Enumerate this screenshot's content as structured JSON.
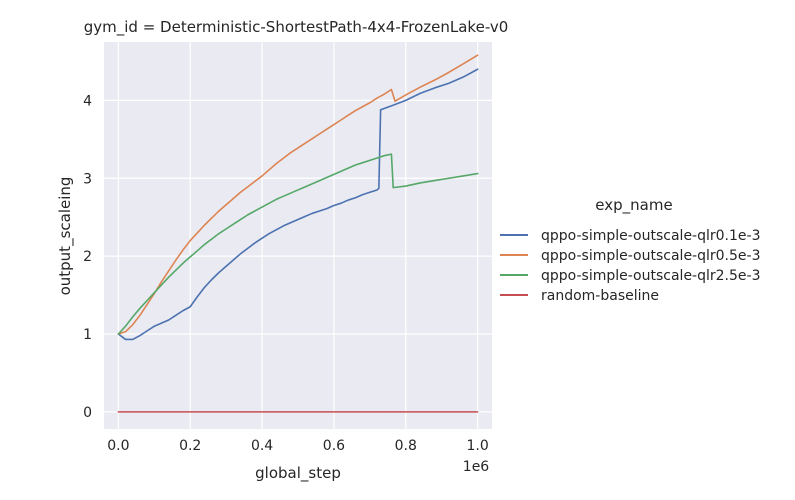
{
  "chart_data": {
    "type": "line",
    "title": "gym_id = Deterministic-ShortestPath-4x4-FrozenLake-v0",
    "xlabel": "global_step",
    "ylabel": "output_scaleing",
    "x_offset_label": "1e6",
    "xlim": [
      -0.04,
      1.04
    ],
    "ylim": [
      -0.22,
      4.75
    ],
    "x_ticks": [
      0.0,
      0.2,
      0.4,
      0.6,
      0.8,
      1.0
    ],
    "x_tick_labels": [
      "0.0",
      "0.2",
      "0.4",
      "0.6",
      "0.8",
      "1.0"
    ],
    "y_ticks": [
      0,
      1,
      2,
      3,
      4
    ],
    "y_tick_labels": [
      "0",
      "1",
      "2",
      "3",
      "4"
    ],
    "grid": true,
    "legend": {
      "title": "exp_name",
      "placement": "right"
    },
    "series": [
      {
        "name": "qppo-simple-outscale-qlr0.1e-3",
        "color": "#4c72b0",
        "x": [
          0.0,
          0.02,
          0.04,
          0.06,
          0.08,
          0.1,
          0.12,
          0.14,
          0.16,
          0.18,
          0.2,
          0.22,
          0.24,
          0.26,
          0.28,
          0.3,
          0.32,
          0.34,
          0.36,
          0.38,
          0.4,
          0.42,
          0.44,
          0.46,
          0.48,
          0.5,
          0.52,
          0.54,
          0.56,
          0.58,
          0.6,
          0.62,
          0.64,
          0.66,
          0.68,
          0.7,
          0.72,
          0.725,
          0.73,
          0.76,
          0.8,
          0.84,
          0.88,
          0.92,
          0.96,
          1.0
        ],
        "y": [
          1.0,
          0.93,
          0.93,
          0.98,
          1.04,
          1.1,
          1.14,
          1.18,
          1.24,
          1.3,
          1.35,
          1.48,
          1.6,
          1.7,
          1.79,
          1.87,
          1.95,
          2.03,
          2.1,
          2.17,
          2.23,
          2.29,
          2.34,
          2.39,
          2.43,
          2.47,
          2.51,
          2.55,
          2.58,
          2.61,
          2.65,
          2.68,
          2.72,
          2.75,
          2.79,
          2.82,
          2.85,
          2.87,
          3.88,
          3.93,
          4.0,
          4.09,
          4.16,
          4.22,
          4.3,
          4.4
        ]
      },
      {
        "name": "qppo-simple-outscale-qlr0.5e-3",
        "color": "#dd8452",
        "x": [
          0.0,
          0.02,
          0.04,
          0.06,
          0.08,
          0.1,
          0.12,
          0.14,
          0.16,
          0.18,
          0.2,
          0.22,
          0.24,
          0.26,
          0.28,
          0.3,
          0.32,
          0.34,
          0.36,
          0.38,
          0.4,
          0.42,
          0.44,
          0.46,
          0.48,
          0.5,
          0.52,
          0.54,
          0.56,
          0.58,
          0.6,
          0.62,
          0.64,
          0.66,
          0.68,
          0.7,
          0.72,
          0.74,
          0.76,
          0.77,
          0.8,
          0.84,
          0.88,
          0.92,
          0.96,
          1.0
        ],
        "y": [
          1.0,
          1.03,
          1.12,
          1.24,
          1.38,
          1.52,
          1.67,
          1.81,
          1.95,
          2.08,
          2.2,
          2.3,
          2.4,
          2.49,
          2.58,
          2.66,
          2.74,
          2.82,
          2.89,
          2.96,
          3.03,
          3.11,
          3.19,
          3.26,
          3.33,
          3.39,
          3.45,
          3.51,
          3.57,
          3.63,
          3.69,
          3.75,
          3.81,
          3.87,
          3.92,
          3.97,
          4.03,
          4.08,
          4.14,
          3.99,
          4.07,
          4.17,
          4.26,
          4.36,
          4.47,
          4.58
        ]
      },
      {
        "name": "qppo-simple-outscale-qlr2.5e-3",
        "color": "#55a868",
        "x": [
          0.0,
          0.02,
          0.04,
          0.06,
          0.08,
          0.1,
          0.12,
          0.14,
          0.16,
          0.18,
          0.2,
          0.22,
          0.24,
          0.26,
          0.28,
          0.3,
          0.32,
          0.34,
          0.36,
          0.38,
          0.4,
          0.42,
          0.44,
          0.46,
          0.48,
          0.5,
          0.52,
          0.54,
          0.56,
          0.58,
          0.6,
          0.62,
          0.64,
          0.66,
          0.68,
          0.7,
          0.72,
          0.74,
          0.76,
          0.765,
          0.8,
          0.84,
          0.88,
          0.92,
          0.96,
          1.0
        ],
        "y": [
          1.0,
          1.1,
          1.22,
          1.33,
          1.43,
          1.53,
          1.63,
          1.73,
          1.82,
          1.91,
          1.99,
          2.07,
          2.15,
          2.22,
          2.29,
          2.35,
          2.41,
          2.47,
          2.53,
          2.58,
          2.63,
          2.68,
          2.73,
          2.77,
          2.81,
          2.85,
          2.89,
          2.93,
          2.97,
          3.01,
          3.05,
          3.09,
          3.13,
          3.17,
          3.2,
          3.23,
          3.26,
          3.29,
          3.31,
          2.88,
          2.9,
          2.94,
          2.97,
          3.0,
          3.03,
          3.06
        ]
      },
      {
        "name": "random-baseline",
        "color": "#c44e52",
        "x": [
          0.0,
          1.0
        ],
        "y": [
          0.0,
          0.0
        ]
      }
    ]
  }
}
